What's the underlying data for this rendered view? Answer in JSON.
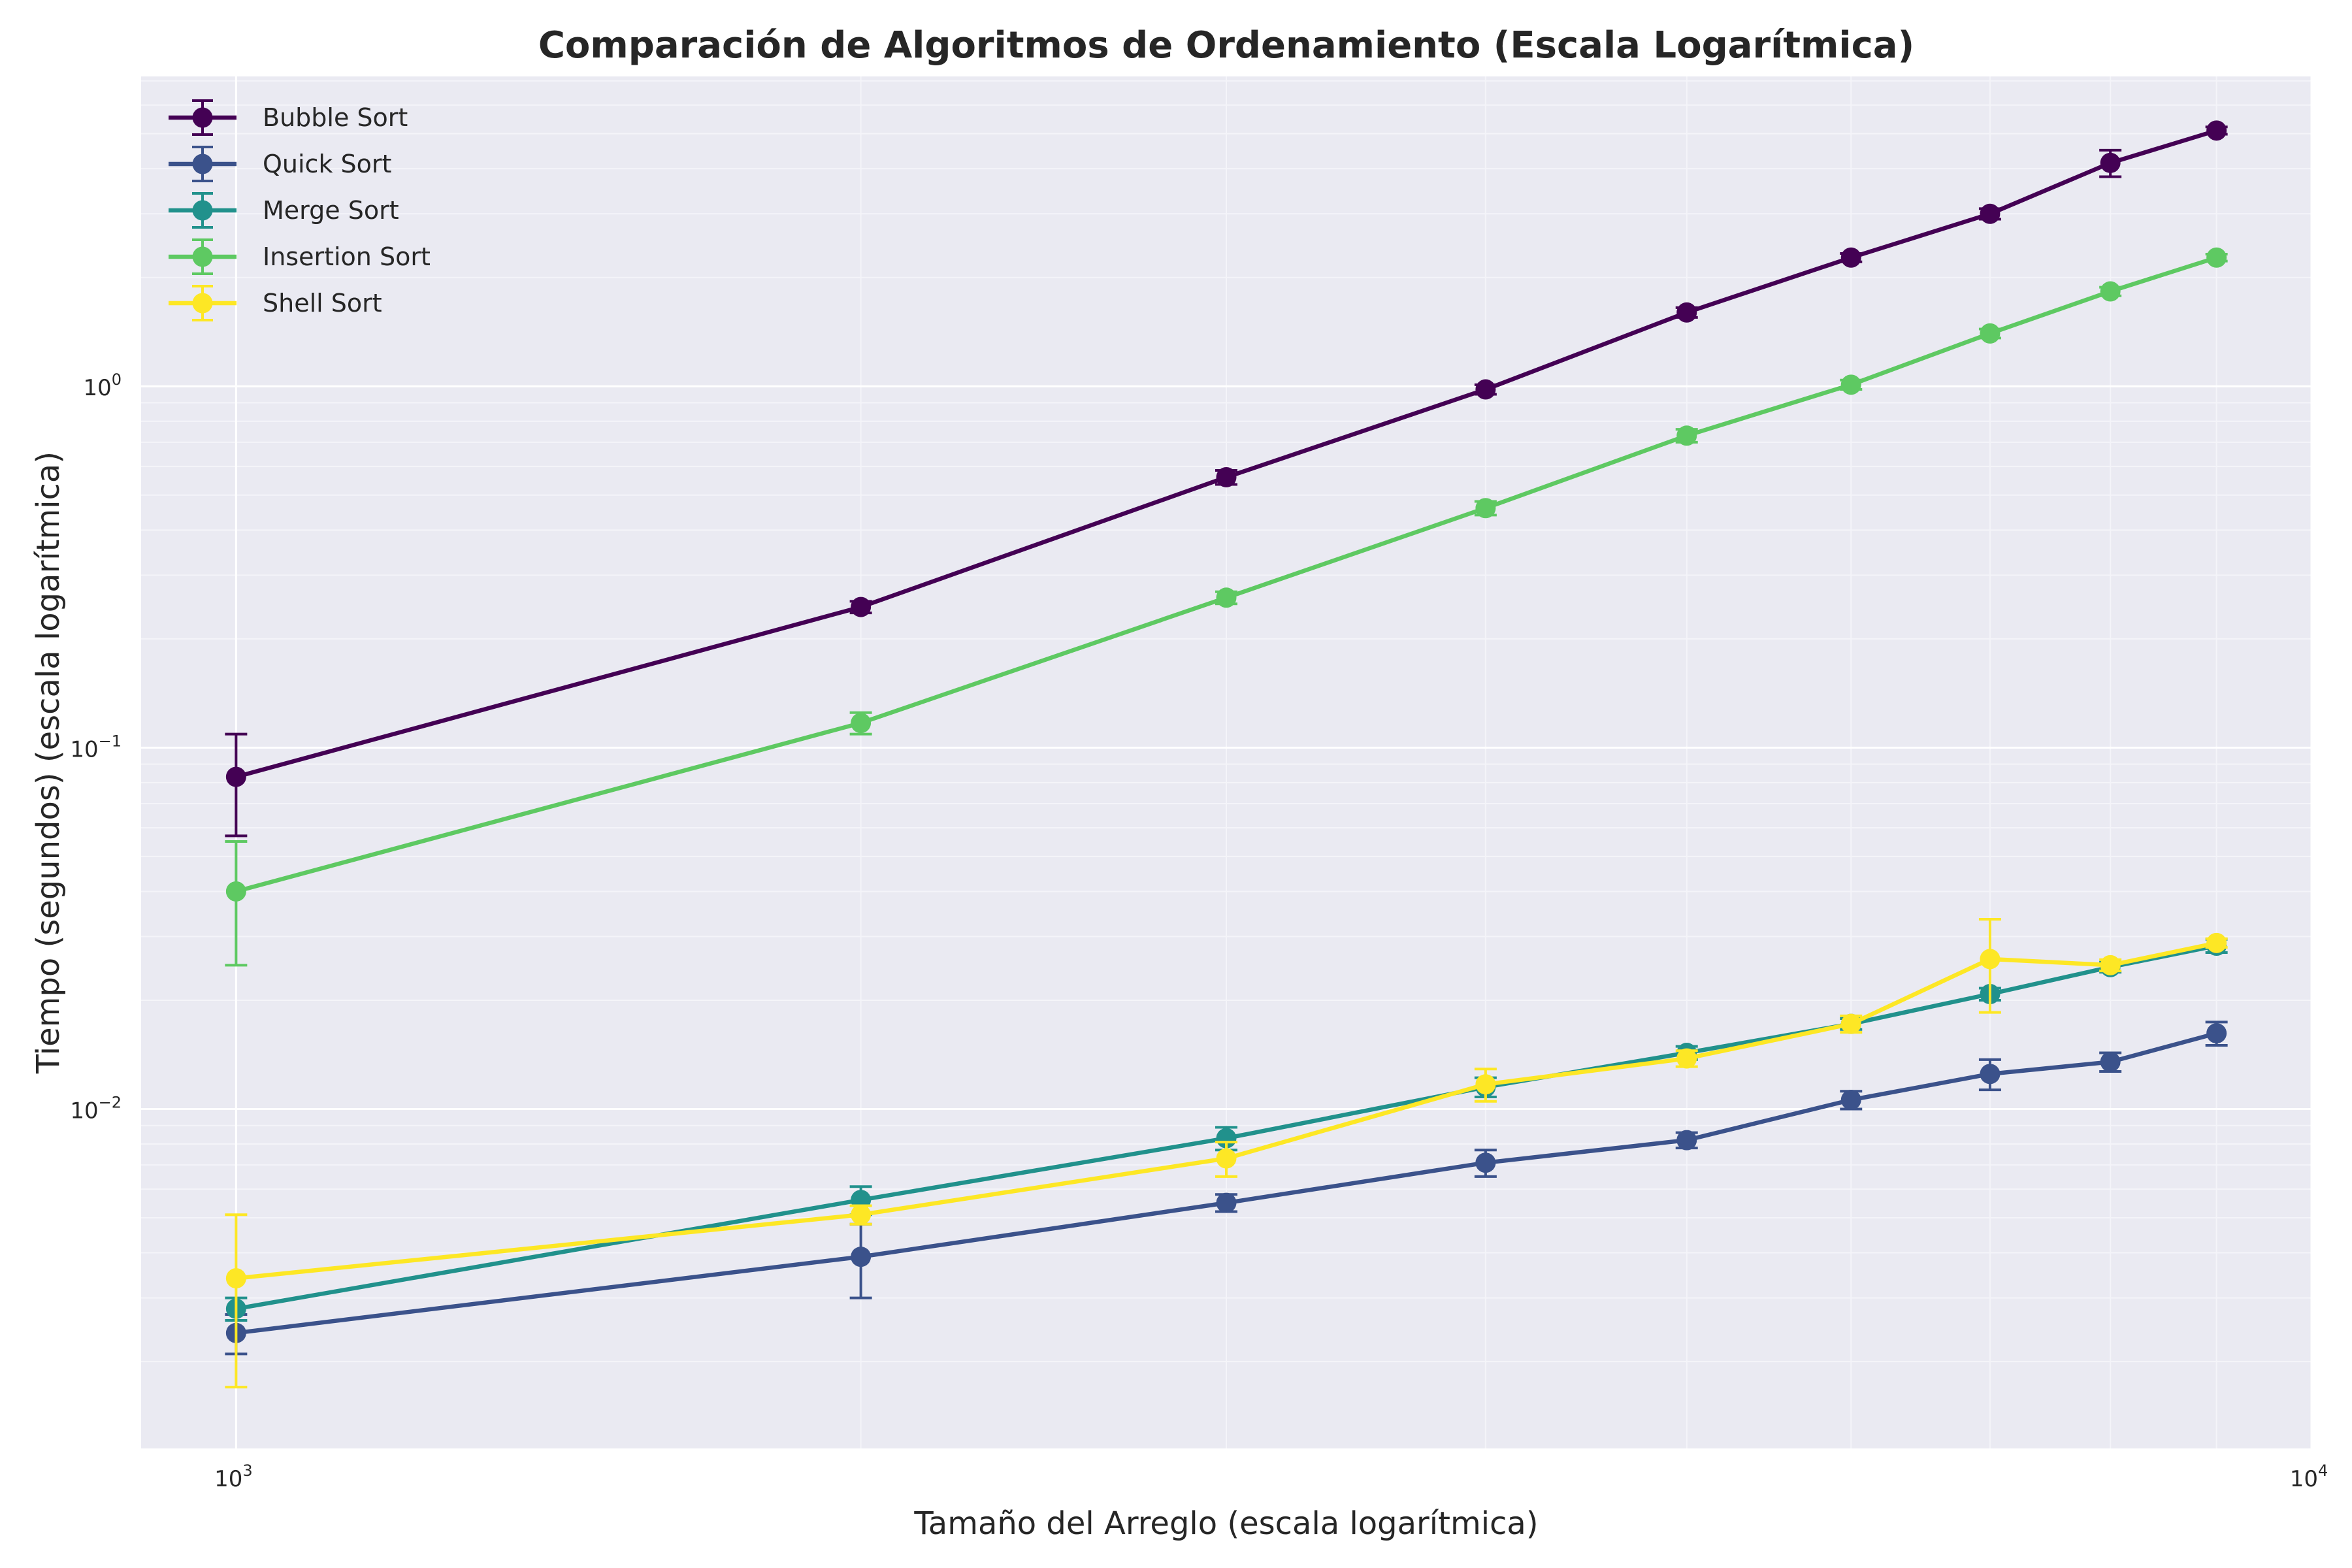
{
  "chart_data": {
    "type": "line",
    "title": "Comparación de Algoritmos de Ordenamiento (Escala Logarítmica)",
    "xlabel": "Tamaño del Arreglo (escala logarítmica)",
    "ylabel": "Tiempo (segundos) (escala logarítmica)",
    "xscale": "log",
    "yscale": "log",
    "xlim": [
      900,
      10000
    ],
    "ylim": [
      0.00115,
      7.2
    ],
    "x_ticks": [
      {
        "value": 1000,
        "base": "10",
        "exp": "3"
      },
      {
        "value": 10000,
        "base": "10",
        "exp": "4"
      }
    ],
    "y_ticks": [
      {
        "value": 0.01,
        "base": "10",
        "exp": "−2"
      },
      {
        "value": 0.1,
        "base": "10",
        "exp": "−1"
      },
      {
        "value": 1,
        "base": "10",
        "exp": "0"
      }
    ],
    "grid": true,
    "legend_position": "top-left",
    "x": [
      1000,
      2000,
      3000,
      4000,
      5000,
      6000,
      7000,
      8000,
      9000
    ],
    "series": [
      {
        "name": "Bubble Sort",
        "color": "#440154",
        "values": [
          0.083,
          0.245,
          0.56,
          0.98,
          1.6,
          2.27,
          3.0,
          4.15,
          5.1
        ],
        "errors": [
          0.026,
          0.009,
          0.025,
          0.03,
          0.05,
          0.06,
          0.1,
          0.35,
          0.12
        ]
      },
      {
        "name": "Quick Sort",
        "color": "#3b528b",
        "values": [
          0.0024,
          0.0039,
          0.0055,
          0.0071,
          0.0082,
          0.0106,
          0.0125,
          0.0135,
          0.0162
        ],
        "errors": [
          0.0003,
          0.0009,
          0.0003,
          0.0006,
          0.0004,
          0.0006,
          0.0012,
          0.0008,
          0.0012
        ]
      },
      {
        "name": "Merge Sort",
        "color": "#21918c",
        "values": [
          0.0028,
          0.0056,
          0.0083,
          0.0115,
          0.0143,
          0.0172,
          0.0208,
          0.0247,
          0.0283
        ],
        "errors": [
          0.0002,
          0.0005,
          0.0006,
          0.0007,
          0.0006,
          0.0006,
          0.0008,
          0.0008,
          0.0012
        ]
      },
      {
        "name": "Insertion Sort",
        "color": "#5ec962",
        "values": [
          0.04,
          0.117,
          0.26,
          0.46,
          0.73,
          1.01,
          1.4,
          1.83,
          2.27
        ],
        "errors": [
          0.015,
          0.008,
          0.01,
          0.02,
          0.03,
          0.03,
          0.04,
          0.05,
          0.05
        ]
      },
      {
        "name": "Shell Sort",
        "color": "#fde725",
        "values": [
          0.0034,
          0.0051,
          0.0073,
          0.0117,
          0.0138,
          0.0172,
          0.026,
          0.025,
          0.0288
        ],
        "errors": [
          0.0017,
          0.0003,
          0.0008,
          0.0012,
          0.0007,
          0.0009,
          0.0075,
          0.0009,
          0.0008
        ]
      }
    ]
  }
}
